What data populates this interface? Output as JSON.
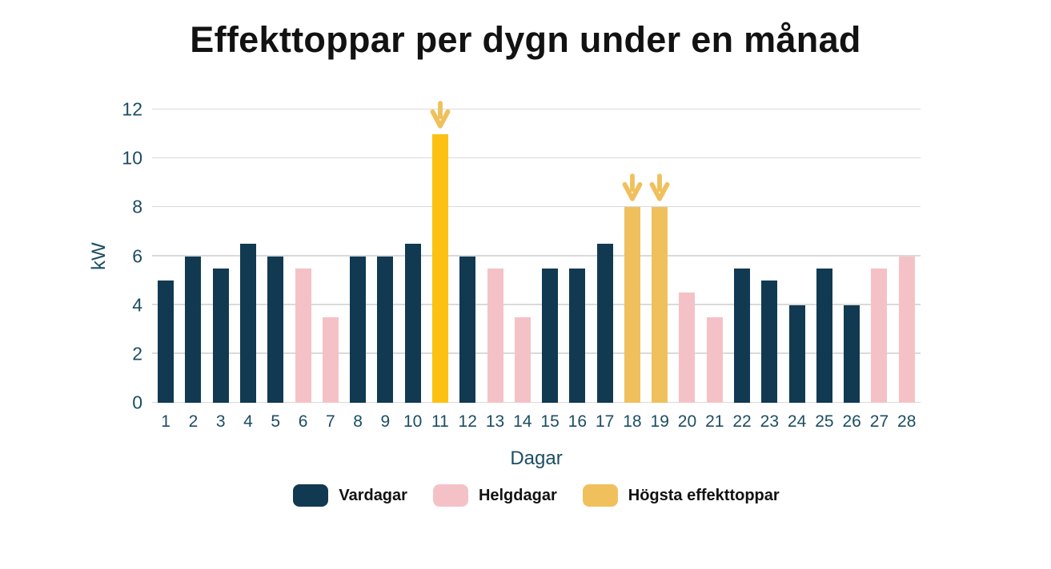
{
  "colors": {
    "vardagar": "#113A52",
    "helgdagar": "#F4C2C6",
    "hogsta": "#F0C05C",
    "hogsta_bright": "#FCC113",
    "axis_text": "#1C4D63",
    "grid": "#DADADA",
    "title_text": "#121212",
    "legend_text": "#121212"
  },
  "chart_data": {
    "type": "bar",
    "title": "Effekttoppar per dygn under en månad",
    "xlabel": "Dagar",
    "ylabel": "kW",
    "ylim": [
      0,
      12
    ],
    "yticks": [
      0,
      2,
      4,
      6,
      8,
      10,
      12
    ],
    "grid": "horizontal",
    "legend_position": "bottom",
    "categories": [
      1,
      2,
      3,
      4,
      5,
      6,
      7,
      8,
      9,
      10,
      11,
      12,
      13,
      14,
      15,
      16,
      17,
      18,
      19,
      20,
      21,
      22,
      23,
      24,
      25,
      26,
      27,
      28
    ],
    "values": [
      5,
      6,
      5.5,
      6.5,
      6,
      5.5,
      3.5,
      6,
      6,
      6.5,
      11,
      6,
      5.5,
      3.5,
      5.5,
      5.5,
      6.5,
      8,
      8,
      4.5,
      3.5,
      5.5,
      5,
      4,
      5.5,
      4,
      5.5,
      6
    ],
    "series_by_day": [
      "vardagar",
      "vardagar",
      "vardagar",
      "vardagar",
      "vardagar",
      "helgdagar",
      "helgdagar",
      "vardagar",
      "vardagar",
      "vardagar",
      "hogsta_bright",
      "vardagar",
      "helgdagar",
      "helgdagar",
      "vardagar",
      "vardagar",
      "vardagar",
      "hogsta",
      "hogsta",
      "helgdagar",
      "helgdagar",
      "vardagar",
      "vardagar",
      "vardagar",
      "vardagar",
      "vardagar",
      "helgdagar",
      "helgdagar"
    ],
    "arrows_on_days": [
      11,
      18,
      19
    ],
    "legend": [
      {
        "label": "Vardagar",
        "color": "vardagar"
      },
      {
        "label": "Helgdagar",
        "color": "helgdagar"
      },
      {
        "label": "Högsta effekttoppar",
        "color": "hogsta"
      }
    ]
  }
}
